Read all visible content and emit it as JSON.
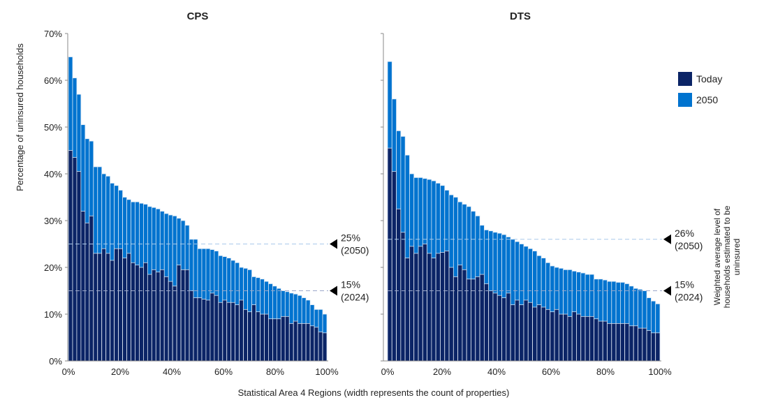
{
  "chart_data": [
    {
      "type": "bar",
      "title": "CPS",
      "ylabel": "Percentage of uninsured households",
      "xlabel": "Statistical Area 4 Regions (width represents the count of properties)",
      "ylim": [
        0,
        70
      ],
      "xlim": [
        0,
        100
      ],
      "yticks": [
        "0%",
        "10%",
        "20%",
        "30%",
        "40%",
        "50%",
        "60%",
        "70%"
      ],
      "xticks": [
        "0%",
        "20%",
        "40%",
        "60%",
        "80%",
        "100%"
      ],
      "grid": false,
      "series": [
        {
          "name": "2050",
          "values": [
            65,
            60.5,
            57,
            50.5,
            47.5,
            47,
            41.5,
            41.5,
            40,
            39.5,
            38,
            37.5,
            36.5,
            35,
            34.5,
            34,
            34,
            33.7,
            33.5,
            33,
            32.8,
            32.5,
            32,
            31.5,
            31.2,
            31,
            30.5,
            30,
            29,
            26,
            26,
            24,
            24,
            24,
            23.8,
            23.5,
            22.5,
            22.3,
            22,
            21.5,
            21,
            20,
            19.8,
            19.5,
            18,
            17.8,
            17.5,
            17,
            16.5,
            16,
            15.5,
            15,
            14.8,
            14.5,
            14.3,
            14,
            13.5,
            13,
            12,
            11,
            11,
            10
          ]
        },
        {
          "name": "Today",
          "values": [
            45,
            43.5,
            40.5,
            32,
            29.5,
            31,
            23,
            23,
            24,
            23,
            21.5,
            24,
            24,
            22,
            23,
            21,
            20.5,
            20,
            21,
            18.5,
            19.5,
            19,
            19.5,
            18,
            17,
            16,
            20.5,
            19.5,
            19.5,
            15,
            13.5,
            13.5,
            13.2,
            13,
            14.5,
            14,
            12.5,
            13,
            12.5,
            12.5,
            12,
            13,
            11,
            10.5,
            12,
            10.5,
            10,
            10,
            9,
            9,
            9,
            9.5,
            9.5,
            8,
            8.5,
            8,
            8,
            8,
            7.5,
            7.2,
            6.2,
            6
          ]
        }
      ],
      "annotations": [
        {
          "value": 25,
          "label_line1": "25%",
          "label_line2": "(2050)"
        },
        {
          "value": 15,
          "label_line1": "15%",
          "label_line2": "(2024)"
        }
      ]
    },
    {
      "type": "bar",
      "title": "DTS",
      "ylim": [
        0,
        70
      ],
      "xlim": [
        0,
        100
      ],
      "xticks": [
        "0%",
        "20%",
        "40%",
        "60%",
        "80%",
        "100%"
      ],
      "grid": false,
      "series": [
        {
          "name": "2050",
          "values": [
            64,
            56,
            49.2,
            48,
            44,
            40,
            39.2,
            39.2,
            39,
            38.8,
            38.5,
            38,
            37.5,
            36.5,
            35.5,
            35,
            34,
            33.5,
            33,
            32,
            31,
            29,
            28,
            27.8,
            27.5,
            27.3,
            27,
            26.5,
            26,
            25.5,
            25,
            24.5,
            24,
            23.5,
            22.5,
            22,
            21,
            20.3,
            20,
            19.8,
            19.5,
            19.5,
            19.2,
            19,
            18.8,
            18.5,
            18.5,
            17.5,
            17.5,
            17.3,
            17,
            17,
            16.8,
            16.8,
            16.5,
            16,
            15.5,
            15.3,
            15,
            13.5,
            12.8,
            12.2
          ]
        },
        {
          "name": "Today",
          "values": [
            45.5,
            40.5,
            32.5,
            27.5,
            22,
            24.5,
            23,
            24.5,
            25,
            23,
            22,
            23,
            23.2,
            23.5,
            20,
            18,
            20.5,
            19.5,
            17.5,
            17.5,
            18,
            18.5,
            16.5,
            15,
            14.5,
            14,
            13.5,
            14.5,
            12,
            13,
            12,
            13,
            12.5,
            11.5,
            12,
            11.5,
            11,
            10.5,
            11,
            10,
            10,
            9.5,
            10.5,
            10,
            9.5,
            9.5,
            9.5,
            9,
            8.5,
            8.5,
            8,
            8,
            8,
            8,
            8,
            7.5,
            7.5,
            7,
            7,
            6.5,
            6,
            6
          ]
        }
      ],
      "annotations": [
        {
          "value": 26,
          "label_line1": "26%",
          "label_line2": "(2050)"
        },
        {
          "value": 15,
          "label_line1": "15%",
          "label_line2": "(2024)"
        }
      ],
      "right_label_lines": [
        "Weighted average level of",
        "households estimated to be",
        "uninsured"
      ]
    }
  ],
  "legend": {
    "placement": "right",
    "items": [
      {
        "label": "Today",
        "color": "#0b2466"
      },
      {
        "label": "2050",
        "color": "#0073cf"
      }
    ]
  },
  "colors": {
    "today": "#0b2466",
    "future": "#0073cf",
    "ref_2050": "#a9c9ea",
    "ref_2024": "#9aa6c9"
  }
}
